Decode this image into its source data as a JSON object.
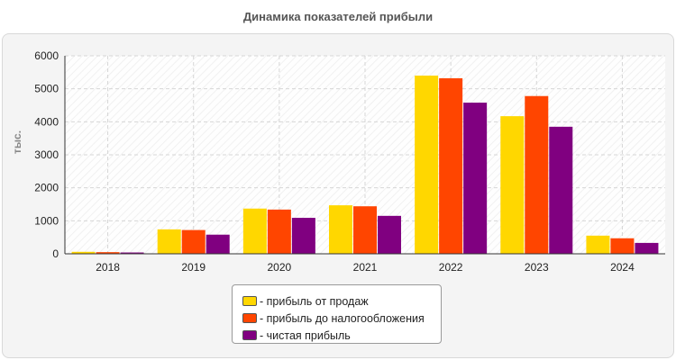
{
  "chart_data": {
    "type": "bar",
    "title": "Динамика показателей прибыли",
    "xlabel": "",
    "ylabel": "тыс.",
    "ylim": [
      0,
      6000
    ],
    "yticks": [
      0,
      1000,
      2000,
      3000,
      4000,
      5000,
      6000
    ],
    "grid": true,
    "legend_position": "bottom",
    "categories": [
      "2018",
      "2019",
      "2020",
      "2021",
      "2022",
      "2023",
      "2024"
    ],
    "series": [
      {
        "name": "- прибыль от продаж",
        "color": "#ffd700",
        "values": [
          60,
          740,
          1370,
          1470,
          5400,
          4170,
          550
        ]
      },
      {
        "name": "- прибыль до налогообложения",
        "color": "#ff4500",
        "values": [
          50,
          720,
          1340,
          1440,
          5320,
          4780,
          470
        ]
      },
      {
        "name": "- чистая прибыль",
        "color": "#800080",
        "values": [
          40,
          580,
          1090,
          1150,
          4580,
          3850,
          330
        ]
      }
    ]
  }
}
